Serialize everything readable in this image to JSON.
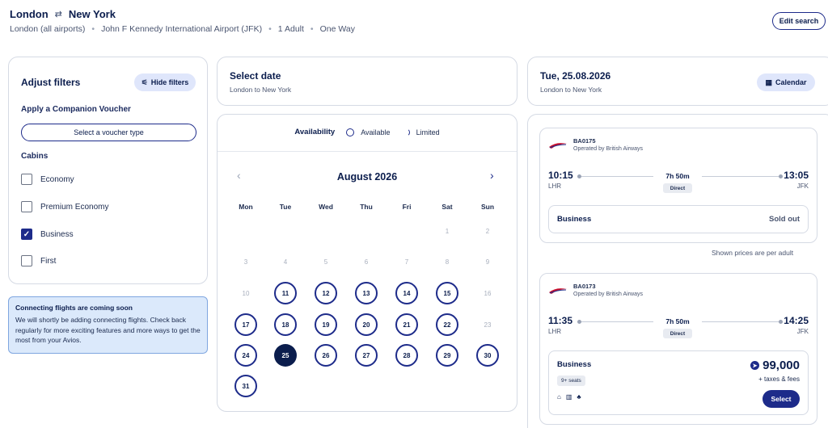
{
  "header": {
    "origin": "London",
    "swap_icon": "⇄",
    "destination": "New York",
    "sub": [
      "London (all airports)",
      "John F Kennedy International Airport (JFK)",
      "1 Adult",
      "One Way"
    ],
    "edit_label": "Edit search"
  },
  "filters": {
    "title": "Adjust filters",
    "hide_label": "Hide filters",
    "companion_label": "Apply a Companion Voucher",
    "voucher_label": "Select a voucher type",
    "cabins_label": "Cabins",
    "cabins": [
      {
        "label": "Economy",
        "checked": false
      },
      {
        "label": "Premium Economy",
        "checked": false
      },
      {
        "label": "Business",
        "checked": true
      },
      {
        "label": "First",
        "checked": false
      }
    ]
  },
  "notice": {
    "title": "Connecting flights are coming soon",
    "body": "We will shortly be adding connecting flights. Check back regularly for more exciting features and more ways to get the most from your Avios."
  },
  "select_date": {
    "title": "Select date",
    "sub": "London to New York"
  },
  "calendar": {
    "availability_label": "Availability",
    "available_label": "Available",
    "limited_label": "Limited",
    "month": "August 2026",
    "weekdays": [
      "Mon",
      "Tue",
      "Wed",
      "Thu",
      "Fri",
      "Sat",
      "Sun"
    ],
    "first_weekday_index": 5,
    "days_in_month": 31,
    "available_days": [
      11,
      12,
      13,
      14,
      15,
      17,
      18,
      19,
      20,
      21,
      22,
      24,
      26,
      27,
      28,
      29,
      30,
      31
    ],
    "selected_day": 25
  },
  "date_card": {
    "title": "Tue, 25.08.2026",
    "sub": "London to New York",
    "calendar_label": "Calendar"
  },
  "flights": [
    {
      "number": "BA0175",
      "operator": "Operated by British Airways",
      "dep_time": "10:15",
      "dep_airport": "LHR",
      "duration": "7h 50m",
      "stops": "Direct",
      "arr_time": "13:05",
      "arr_airport": "JFK",
      "cabin": "Business",
      "status": "Sold out"
    },
    {
      "number": "BA0173",
      "operator": "Operated by British Airways",
      "dep_time": "11:35",
      "dep_airport": "LHR",
      "duration": "7h 50m",
      "stops": "Direct",
      "arr_time": "14:25",
      "arr_airport": "JFK",
      "cabin": "Business",
      "seats": "9+ seats",
      "price": "99,000",
      "taxes": "+ taxes & fees",
      "select_label": "Select"
    }
  ],
  "per_adult_note": "Shown prices are per adult",
  "colors": {
    "accent": "#1d2b8a",
    "navy": "#0b1d4d",
    "notice_bg": "#dbe9fb"
  }
}
